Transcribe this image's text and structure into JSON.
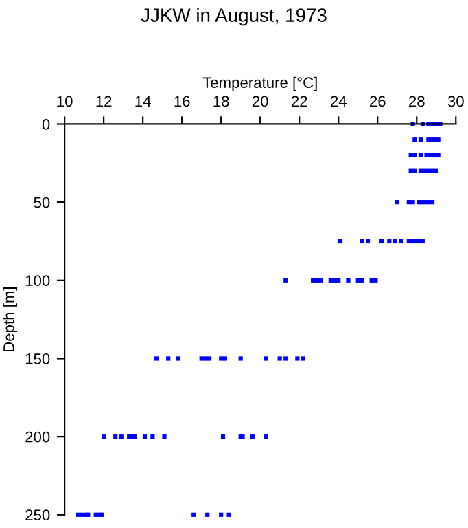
{
  "chart_data": {
    "type": "scatter",
    "title": "JJKW in August, 1973",
    "xlabel": "Temperature [°C]",
    "ylabel": "Depth [m]",
    "xlim": [
      10,
      30
    ],
    "xticks": [
      10,
      12,
      14,
      16,
      18,
      20,
      22,
      24,
      26,
      28,
      30
    ],
    "ylim": [
      250,
      0
    ],
    "yticks": [
      0,
      50,
      100,
      150,
      200,
      250
    ],
    "marker": "square",
    "grid": false,
    "legend": false,
    "series": [
      {
        "color": "#0000ff",
        "x": [
          27.8,
          28.3,
          28.6,
          28.8,
          29.0,
          29.2,
          27.9,
          28.2,
          28.6,
          28.8,
          28.9,
          29.1,
          27.7,
          27.9,
          28.2,
          28.5,
          28.7,
          28.9,
          29.1,
          27.7,
          27.9,
          28.2,
          28.4,
          28.6,
          28.8,
          29.0,
          27.0,
          27.6,
          27.8,
          28.1,
          28.2,
          28.4,
          28.6,
          28.8,
          24.1,
          25.2,
          25.5,
          26.2,
          26.6,
          26.9,
          27.2,
          27.6,
          27.8,
          27.9,
          28.1,
          28.3,
          21.3,
          22.7,
          22.9,
          23.1,
          23.6,
          23.8,
          24.0,
          24.5,
          25.0,
          25.2,
          25.7,
          25.9,
          14.7,
          15.3,
          15.8,
          17.0,
          17.2,
          17.4,
          18.0,
          18.2,
          19.0,
          20.3,
          21.0,
          21.3,
          21.9,
          22.2,
          12.0,
          12.6,
          12.9,
          13.3,
          13.4,
          13.6,
          14.1,
          14.5,
          15.1,
          18.1,
          19.0,
          19.1,
          19.6,
          20.3,
          10.7,
          10.9,
          11.1,
          11.2,
          11.6,
          11.8,
          11.9,
          16.6,
          17.3,
          18.0,
          18.4
        ],
        "values": [
          0,
          0,
          0,
          0,
          0,
          0,
          10,
          10,
          10,
          10,
          10,
          10,
          20,
          20,
          20,
          20,
          20,
          20,
          20,
          30,
          30,
          30,
          30,
          30,
          30,
          30,
          50,
          50,
          50,
          50,
          50,
          50,
          50,
          50,
          75,
          75,
          75,
          75,
          75,
          75,
          75,
          75,
          75,
          75,
          75,
          75,
          100,
          100,
          100,
          100,
          100,
          100,
          100,
          100,
          100,
          100,
          100,
          100,
          150,
          150,
          150,
          150,
          150,
          150,
          150,
          150,
          150,
          150,
          150,
          150,
          150,
          150,
          200,
          200,
          200,
          200,
          200,
          200,
          200,
          200,
          200,
          200,
          200,
          200,
          200,
          200,
          250,
          250,
          250,
          250,
          250,
          250,
          250,
          250,
          250,
          250,
          250
        ]
      }
    ]
  }
}
